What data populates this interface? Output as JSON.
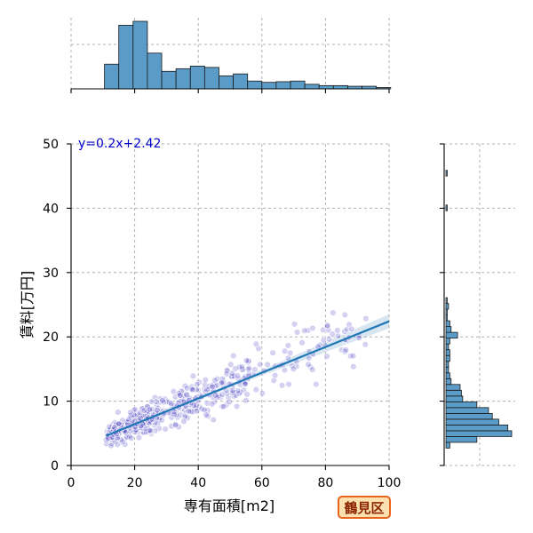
{
  "chart_data": {
    "type": "scatter",
    "xlabel": "専有面積[m2]",
    "ylabel": "賃料[万円]",
    "xlim": [
      0,
      100
    ],
    "ylim": [
      0,
      50
    ],
    "xticks": [
      0,
      20,
      40,
      60,
      80,
      100
    ],
    "yticks": [
      0,
      10,
      20,
      30,
      40,
      50
    ],
    "grid": true,
    "annotation": "y=0.2x+2.42",
    "regression": {
      "slope": 0.2,
      "intercept": 2.42,
      "x_range": [
        11,
        100
      ]
    },
    "top_histogram": {
      "bin_width": 4.5,
      "bins_start": [
        10.5,
        15,
        19.5,
        24,
        28.5,
        33,
        37.5,
        42,
        46.5,
        51,
        55.5,
        60,
        64.5,
        69,
        73.5,
        78,
        82.5,
        87,
        91.5,
        96
      ],
      "counts": [
        38,
        98,
        104,
        55,
        27,
        31,
        35,
        33,
        20,
        23,
        12,
        10,
        11,
        12,
        7,
        5,
        5,
        4,
        4,
        2
      ]
    },
    "right_histogram": {
      "bin_width": 0.9,
      "bins_start": [
        2.7,
        3.6,
        4.5,
        5.4,
        6.3,
        7.2,
        8.1,
        9.0,
        9.9,
        10.8,
        11.7,
        12.6,
        13.5,
        14.4,
        15.3,
        16.2,
        17.1,
        18.0,
        18.9,
        19.8,
        20.7,
        21.6,
        22.5,
        23.4,
        24.3,
        25.2,
        39.6,
        45.0
      ],
      "counts": [
        3,
        24,
        51,
        48,
        41,
        36,
        33,
        24,
        13,
        12,
        11,
        4,
        3,
        2,
        2,
        3,
        3,
        2,
        3,
        9,
        4,
        3,
        1,
        1,
        2,
        1,
        1,
        1
      ]
    }
  },
  "ward_label": "鶴見区",
  "colors": {
    "points": "#3b2fbf",
    "regression": "#1f77b4",
    "hist_fill": "#5b9bc8",
    "grid": "#b0b0b0"
  }
}
